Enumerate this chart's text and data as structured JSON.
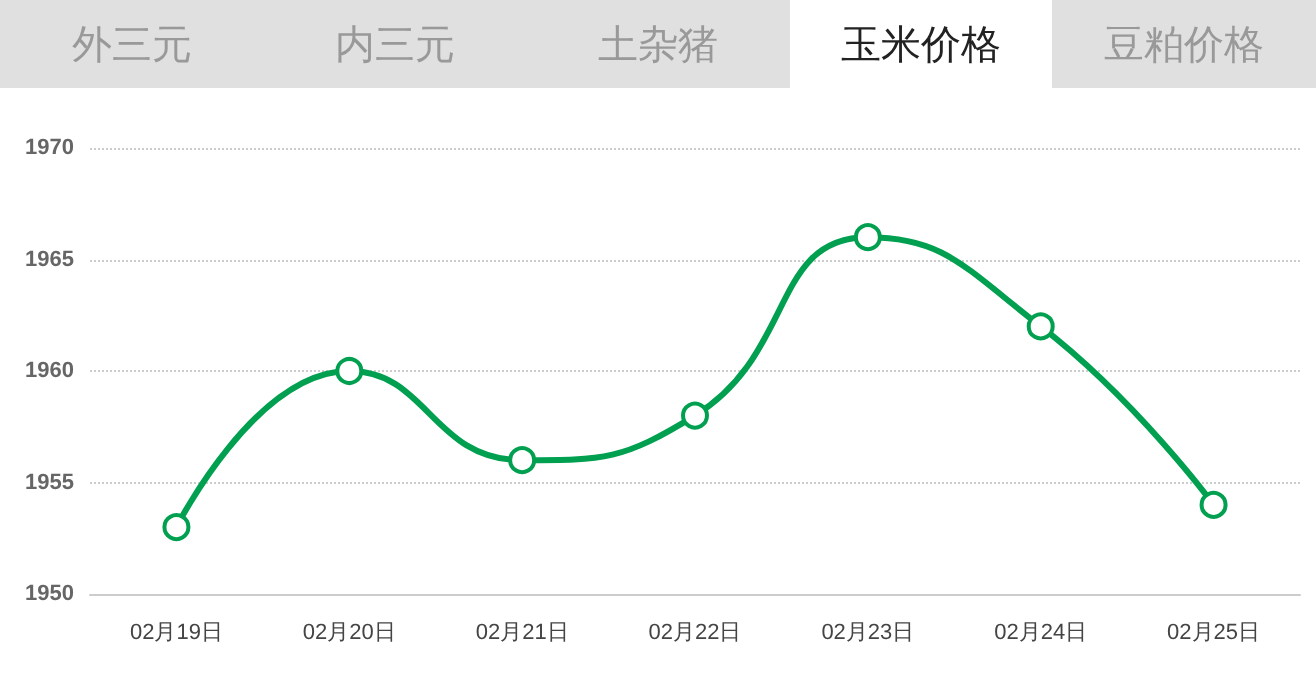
{
  "chart_data": {
    "type": "line",
    "title": "玉米价格",
    "annotations": [
      "外三元",
      "内三元",
      "土杂猪",
      "豆粕价格"
    ],
    "categories": [
      "02月19日",
      "02月20日",
      "02月21日",
      "02月22日",
      "02月23日",
      "02月24日",
      "02月25日"
    ],
    "series": [
      {
        "color": "#00a050",
        "values": [
          1953,
          1960,
          1956,
          1958,
          1966,
          1962,
          1954
        ]
      }
    ],
    "ylim": [
      1950,
      1970
    ],
    "yticks": [
      1950,
      1955,
      1960,
      1965,
      1970
    ],
    "grid": "y",
    "marker": "circle",
    "line_style": "solid"
  }
}
